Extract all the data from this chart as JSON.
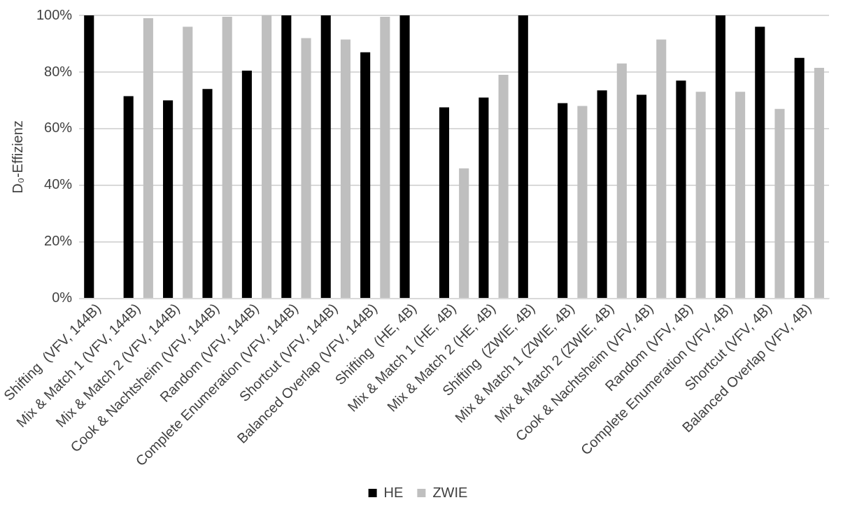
{
  "chart_data": {
    "type": "bar",
    "ylabel": "D₀-Effizienz",
    "categories": [
      "Shifting  (VFV, 144B)",
      "Mix & Match 1 (VFV, 144B)",
      "Mix & Match 2 (VFV, 144B)",
      "Cook & Nachtsheim (VFV, 144B)",
      "Random (VFV, 144B)",
      "Complete Enumeration (VFV, 144B)",
      "Shortcut (VFV, 144B)",
      "Balanced Overlap (VFV, 144B)",
      "Shifting  (HE, 4B)",
      "Mix & Match 1 (HE, 4B)",
      "Mix & Match 2 (HE, 4B)",
      "Shifting  (ZWIE, 4B)",
      "Mix & Match 1 (ZWIE, 4B)",
      "Mix & Match 2 (ZWIE, 4B)",
      "Cook & Nachtsheim (VFV, 4B)",
      "Random (VFV, 4B)",
      "Complete Enumeration (VFV, 4B)",
      "Shortcut (VFV, 4B)",
      "Balanced Overlap (VFV, 4B)"
    ],
    "series": [
      {
        "name": "HE",
        "color": "#000000",
        "values": [
          100,
          71.5,
          70,
          74,
          80.5,
          100,
          100,
          87,
          100,
          67.5,
          71,
          100,
          69,
          73.5,
          72,
          77,
          100,
          96,
          85
        ]
      },
      {
        "name": "ZWIE",
        "color": "#bfbfbf",
        "values": [
          null,
          99,
          96,
          99.5,
          100,
          92,
          91.5,
          99.5,
          null,
          46,
          79,
          null,
          68,
          83,
          91.5,
          73,
          73,
          67,
          81.5
        ]
      }
    ],
    "ylim": [
      0,
      100
    ],
    "yticks": [
      {
        "value": 0,
        "label": "0%"
      },
      {
        "value": 20,
        "label": "20%"
      },
      {
        "value": 40,
        "label": "40%"
      },
      {
        "value": 60,
        "label": "60%"
      },
      {
        "value": 80,
        "label": "80%"
      },
      {
        "value": 100,
        "label": "100%"
      }
    ],
    "grid": "y",
    "legend": "bottom"
  }
}
